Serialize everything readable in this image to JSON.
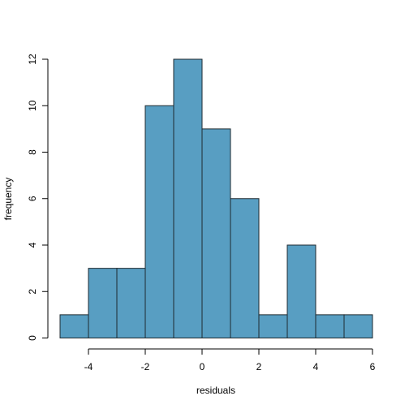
{
  "chart_data": {
    "type": "bar",
    "title": "",
    "xlabel": "residuals",
    "ylabel": "frequency",
    "bins": [
      {
        "x0": -5,
        "x1": -4,
        "value": 1
      },
      {
        "x0": -4,
        "x1": -3,
        "value": 3
      },
      {
        "x0": -3,
        "x1": -2,
        "value": 3
      },
      {
        "x0": -2,
        "x1": -1,
        "value": 10
      },
      {
        "x0": -1,
        "x1": 0,
        "value": 12
      },
      {
        "x0": 0,
        "x1": 1,
        "value": 9
      },
      {
        "x0": 1,
        "x1": 2,
        "value": 6
      },
      {
        "x0": 2,
        "x1": 3,
        "value": 1
      },
      {
        "x0": 3,
        "x1": 4,
        "value": 4
      },
      {
        "x0": 4,
        "x1": 5,
        "value": 1
      },
      {
        "x0": 5,
        "x1": 6,
        "value": 1
      }
    ],
    "xlim": [
      -5,
      6
    ],
    "ylim": [
      0,
      12
    ],
    "x_ticks": [
      "-4",
      "-2",
      "0",
      "2",
      "4",
      "6"
    ],
    "y_ticks": [
      "0",
      "2",
      "4",
      "6",
      "8",
      "10",
      "12"
    ],
    "grid": false,
    "colors": {
      "bar_fill": "#589ec2",
      "bar_stroke": "#1e2a30"
    }
  }
}
